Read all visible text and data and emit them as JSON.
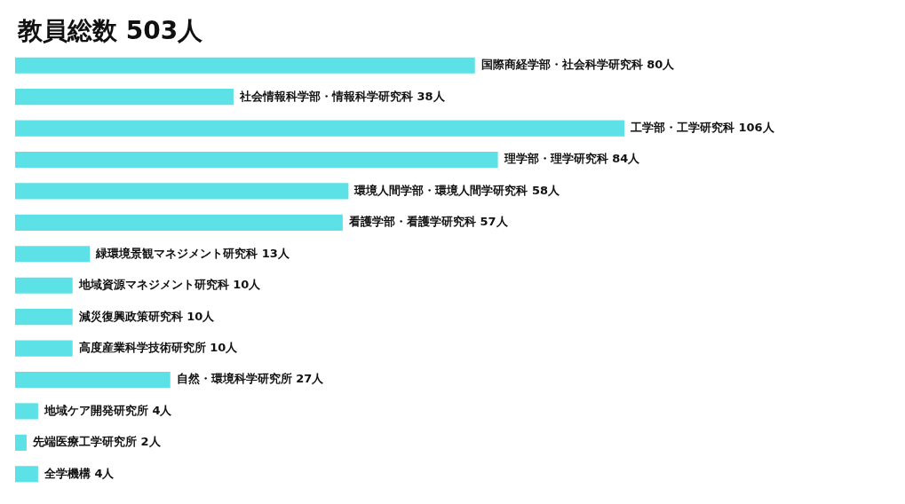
{
  "chart_data": {
    "type": "bar",
    "orientation": "horizontal",
    "title": "教員総数 503人",
    "categories": [
      null,
      null,
      null,
      null,
      null,
      null,
      null,
      null,
      null,
      null,
      null,
      null,
      null,
      null
    ],
    "values": [
      80,
      38,
      106,
      84,
      58,
      57,
      13,
      10,
      10,
      10,
      27,
      4,
      2,
      4
    ],
    "value_labels": [
      "国際商経学部・社会科学研究科 80人",
      "社会情報科学部・情報科学研究科 38人",
      "工学部・工学研究科 106人",
      "理学部・理学研究科 84人",
      "環境人間学部・環境人間学研究科 58人",
      "看護学部・看護学研究科 57人",
      "緑環境景観マネジメント研究科 13人",
      "地域資源マネジメント研究科 10人",
      "減災復興政策研究科 10人",
      "高度産業科学技術研究所 10人",
      "自然・環境科学研究所 27人",
      "地域ケア開発研究所 4人",
      "先端医療工学研究所 2人",
      "全学機構 4人"
    ],
    "color": "#5ce1e6"
  }
}
